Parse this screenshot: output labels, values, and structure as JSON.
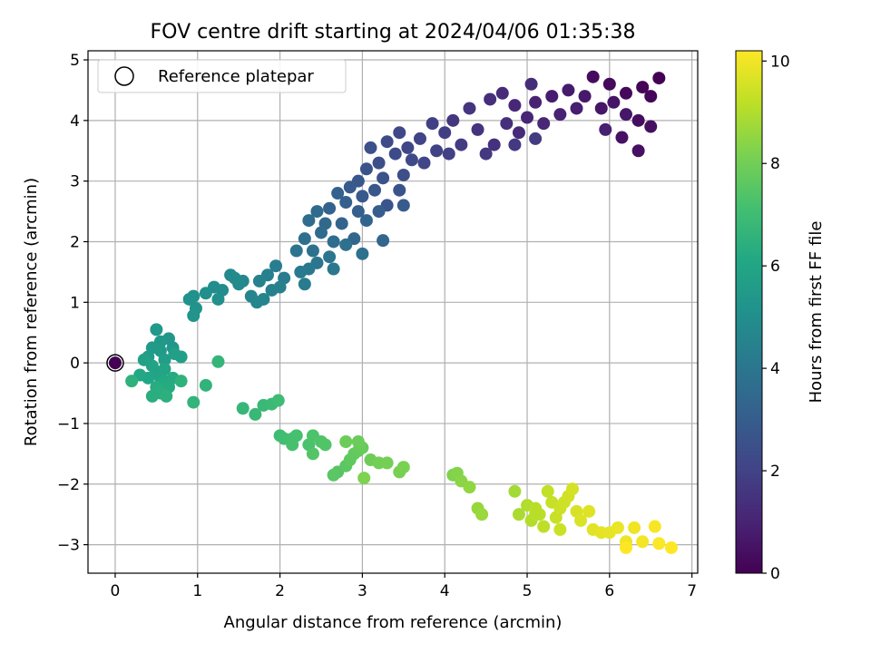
{
  "chart_data": {
    "type": "scatter",
    "title": "FOV centre drift starting at 2024/04/06 01:35:38",
    "xlabel": "Angular distance from reference (arcmin)",
    "ylabel": "Rotation from reference (arcmin)",
    "xlim": [
      -0.33,
      7.07
    ],
    "ylim": [
      -3.47,
      5.15
    ],
    "xticks": [
      0,
      1,
      2,
      3,
      4,
      5,
      6,
      7
    ],
    "yticks": [
      -3,
      -2,
      -1,
      0,
      1,
      2,
      3,
      4,
      5
    ],
    "grid": true,
    "legend": {
      "placement": "top-left",
      "entries": [
        "Reference platepar"
      ]
    },
    "reference_point": {
      "x": 0,
      "y": 0,
      "hours": 0
    },
    "colorbar": {
      "label": "Hours from first FF file",
      "colormap": "viridis",
      "range": [
        0,
        10.2
      ],
      "ticks": [
        0,
        2,
        4,
        6,
        8,
        10
      ]
    },
    "points": [
      [
        6.6,
        4.7,
        0.0
      ],
      [
        6.4,
        4.55,
        0.1
      ],
      [
        6.5,
        4.4,
        0.15
      ],
      [
        6.2,
        4.45,
        0.2
      ],
      [
        6.0,
        4.6,
        0.25
      ],
      [
        5.8,
        4.72,
        0.3
      ],
      [
        6.35,
        4.0,
        0.35
      ],
      [
        6.5,
        3.9,
        0.4
      ],
      [
        6.35,
        3.5,
        0.45
      ],
      [
        6.15,
        3.72,
        0.5
      ],
      [
        6.05,
        4.3,
        0.55
      ],
      [
        5.9,
        4.2,
        0.6
      ],
      [
        6.2,
        4.1,
        0.65
      ],
      [
        5.7,
        4.4,
        0.7
      ],
      [
        5.5,
        4.5,
        0.75
      ],
      [
        5.3,
        4.4,
        0.8
      ],
      [
        5.6,
        4.2,
        0.85
      ],
      [
        5.95,
        3.85,
        0.9
      ],
      [
        5.4,
        4.1,
        0.95
      ],
      [
        5.1,
        4.3,
        1.0
      ],
      [
        5.0,
        4.05,
        1.05
      ],
      [
        5.2,
        3.95,
        1.1
      ],
      [
        4.85,
        4.25,
        1.15
      ],
      [
        4.7,
        4.45,
        1.2
      ],
      [
        4.9,
        3.8,
        1.25
      ],
      [
        5.05,
        4.6,
        1.3
      ],
      [
        4.55,
        4.35,
        1.35
      ],
      [
        4.75,
        3.95,
        1.4
      ],
      [
        4.6,
        3.6,
        1.45
      ],
      [
        4.4,
        3.85,
        1.5
      ],
      [
        4.3,
        4.2,
        1.55
      ],
      [
        4.1,
        4.0,
        1.6
      ],
      [
        4.5,
        3.45,
        1.65
      ],
      [
        4.85,
        3.6,
        1.7
      ],
      [
        5.1,
        3.7,
        1.75
      ],
      [
        4.2,
        3.6,
        1.8
      ],
      [
        4.0,
        3.8,
        1.85
      ],
      [
        3.85,
        3.95,
        1.9
      ],
      [
        4.05,
        3.45,
        1.95
      ],
      [
        3.9,
        3.5,
        2.0
      ],
      [
        3.7,
        3.7,
        2.05
      ],
      [
        3.75,
        3.3,
        2.1
      ],
      [
        3.55,
        3.55,
        2.15
      ],
      [
        3.45,
        3.8,
        2.2
      ],
      [
        3.6,
        3.35,
        2.25
      ],
      [
        3.4,
        3.45,
        2.3
      ],
      [
        3.3,
        3.65,
        2.35
      ],
      [
        3.5,
        3.1,
        2.4
      ],
      [
        3.2,
        3.3,
        2.45
      ],
      [
        3.1,
        3.55,
        2.5
      ],
      [
        3.25,
        3.05,
        2.55
      ],
      [
        3.05,
        3.2,
        2.6
      ],
      [
        3.45,
        2.85,
        2.65
      ],
      [
        3.3,
        2.6,
        2.7
      ],
      [
        3.15,
        2.85,
        2.75
      ],
      [
        2.95,
        3.0,
        2.8
      ],
      [
        3.0,
        2.75,
        2.85
      ],
      [
        2.85,
        2.9,
        2.9
      ],
      [
        3.5,
        2.6,
        2.95
      ],
      [
        3.2,
        2.5,
        3.0
      ],
      [
        2.95,
        2.5,
        3.05
      ],
      [
        2.8,
        2.65,
        3.1
      ],
      [
        2.7,
        2.8,
        3.15
      ],
      [
        2.6,
        2.55,
        3.2
      ],
      [
        2.75,
        2.3,
        3.25
      ],
      [
        3.05,
        2.35,
        3.3
      ],
      [
        3.25,
        2.02,
        3.35
      ],
      [
        2.9,
        2.05,
        3.4
      ],
      [
        2.55,
        2.3,
        3.45
      ],
      [
        2.45,
        2.5,
        3.5
      ],
      [
        2.5,
        2.15,
        3.55
      ],
      [
        2.35,
        2.35,
        3.6
      ],
      [
        2.65,
        2.0,
        3.65
      ],
      [
        2.3,
        2.05,
        3.7
      ],
      [
        2.8,
        1.95,
        3.75
      ],
      [
        3.0,
        1.8,
        3.8
      ],
      [
        2.4,
        1.85,
        3.85
      ],
      [
        2.2,
        1.85,
        3.9
      ],
      [
        2.45,
        1.65,
        3.95
      ],
      [
        2.6,
        1.75,
        4.0
      ],
      [
        2.65,
        1.55,
        4.05
      ],
      [
        2.35,
        1.55,
        4.1
      ],
      [
        2.25,
        1.5,
        4.15
      ],
      [
        2.3,
        1.3,
        4.2
      ],
      [
        2.05,
        1.4,
        4.25
      ],
      [
        1.95,
        1.6,
        4.3
      ],
      [
        2.0,
        1.25,
        4.35
      ],
      [
        1.85,
        1.45,
        4.4
      ],
      [
        1.9,
        1.2,
        4.45
      ],
      [
        1.75,
        1.35,
        4.5
      ],
      [
        1.65,
        1.1,
        4.55
      ],
      [
        1.8,
        1.05,
        4.6
      ],
      [
        1.72,
        1.0,
        4.65
      ],
      [
        1.55,
        1.35,
        4.7
      ],
      [
        1.4,
        1.45,
        4.75
      ],
      [
        1.5,
        1.3,
        4.8
      ],
      [
        1.45,
        1.4,
        4.85
      ],
      [
        1.3,
        1.2,
        4.9
      ],
      [
        1.2,
        1.25,
        4.95
      ],
      [
        1.25,
        1.05,
        5.0
      ],
      [
        1.1,
        1.15,
        5.05
      ],
      [
        0.95,
        1.1,
        5.1
      ],
      [
        0.9,
        1.05,
        5.15
      ],
      [
        0.98,
        0.9,
        5.2
      ],
      [
        0.95,
        0.78,
        5.25
      ],
      [
        0.7,
        0.25,
        5.3
      ],
      [
        0.65,
        0.4,
        5.35
      ],
      [
        0.5,
        0.55,
        5.4
      ],
      [
        0.55,
        0.35,
        5.45
      ],
      [
        0.45,
        0.25,
        5.5
      ],
      [
        0.55,
        0.2,
        5.55
      ],
      [
        0.4,
        0.1,
        5.6
      ],
      [
        0.6,
        0.05,
        5.65
      ],
      [
        0.72,
        0.15,
        5.7
      ],
      [
        0.8,
        0.1,
        5.75
      ],
      [
        0.35,
        0.05,
        5.8
      ],
      [
        0.45,
        -0.05,
        5.85
      ],
      [
        0.5,
        -0.15,
        5.9
      ],
      [
        0.6,
        -0.1,
        5.95
      ],
      [
        0.55,
        -0.25,
        6.0
      ],
      [
        0.4,
        -0.25,
        6.05
      ],
      [
        0.3,
        -0.2,
        6.1
      ],
      [
        0.6,
        -0.3,
        6.15
      ],
      [
        0.7,
        -0.25,
        6.2
      ],
      [
        0.65,
        -0.4,
        6.25
      ],
      [
        0.5,
        -0.4,
        6.3
      ],
      [
        0.45,
        -0.55,
        6.35
      ],
      [
        0.55,
        -0.5,
        6.4
      ],
      [
        0.62,
        -0.55,
        6.45
      ],
      [
        0.2,
        -0.3,
        6.5
      ],
      [
        0.8,
        -0.3,
        6.55
      ],
      [
        1.1,
        -0.37,
        6.6
      ],
      [
        0.95,
        -0.65,
        6.65
      ],
      [
        1.25,
        0.02,
        6.7
      ],
      [
        1.55,
        -0.75,
        6.75
      ],
      [
        1.7,
        -0.85,
        6.8
      ],
      [
        1.8,
        -0.7,
        6.85
      ],
      [
        1.9,
        -0.68,
        6.9
      ],
      [
        1.98,
        -0.62,
        6.95
      ],
      [
        2.0,
        -1.2,
        7.0
      ],
      [
        2.05,
        -1.25,
        7.05
      ],
      [
        2.15,
        -1.25,
        7.1
      ],
      [
        2.2,
        -1.2,
        7.15
      ],
      [
        2.15,
        -1.35,
        7.2
      ],
      [
        2.35,
        -1.35,
        7.25
      ],
      [
        2.4,
        -1.2,
        7.3
      ],
      [
        2.5,
        -1.3,
        7.35
      ],
      [
        2.55,
        -1.35,
        7.4
      ],
      [
        2.4,
        -1.5,
        7.45
      ],
      [
        2.7,
        -1.8,
        7.5
      ],
      [
        2.65,
        -1.85,
        7.55
      ],
      [
        2.8,
        -1.7,
        7.6
      ],
      [
        2.85,
        -1.6,
        7.65
      ],
      [
        2.9,
        -1.5,
        7.7
      ],
      [
        2.95,
        -1.45,
        7.75
      ],
      [
        3.0,
        -1.4,
        7.8
      ],
      [
        2.95,
        -1.3,
        7.85
      ],
      [
        2.8,
        -1.3,
        7.9
      ],
      [
        3.1,
        -1.6,
        7.95
      ],
      [
        3.2,
        -1.65,
        8.0
      ],
      [
        3.3,
        -1.65,
        8.05
      ],
      [
        3.45,
        -1.8,
        8.1
      ],
      [
        3.5,
        -1.72,
        8.15
      ],
      [
        3.02,
        -1.9,
        8.2
      ],
      [
        4.1,
        -1.85,
        8.25
      ],
      [
        4.15,
        -1.82,
        8.3
      ],
      [
        4.2,
        -1.95,
        8.4
      ],
      [
        4.3,
        -2.05,
        8.5
      ],
      [
        4.4,
        -2.4,
        8.6
      ],
      [
        4.45,
        -2.5,
        8.65
      ],
      [
        4.85,
        -2.12,
        8.8
      ],
      [
        4.9,
        -2.5,
        8.9
      ],
      [
        5.0,
        -2.35,
        9.0
      ],
      [
        5.05,
        -2.6,
        9.05
      ],
      [
        5.1,
        -2.4,
        9.1
      ],
      [
        5.15,
        -2.5,
        9.15
      ],
      [
        5.2,
        -2.7,
        9.2
      ],
      [
        5.25,
        -2.12,
        9.25
      ],
      [
        5.3,
        -2.3,
        9.3
      ],
      [
        5.35,
        -2.55,
        9.35
      ],
      [
        5.4,
        -2.4,
        9.4
      ],
      [
        5.45,
        -2.3,
        9.45
      ],
      [
        5.5,
        -2.2,
        9.5
      ],
      [
        5.55,
        -2.08,
        9.55
      ],
      [
        5.6,
        -2.45,
        9.6
      ],
      [
        5.65,
        -2.6,
        9.65
      ],
      [
        5.75,
        -2.45,
        9.7
      ],
      [
        5.8,
        -2.75,
        9.75
      ],
      [
        5.9,
        -2.8,
        9.8
      ],
      [
        6.0,
        -2.8,
        9.85
      ],
      [
        6.1,
        -2.72,
        9.9
      ],
      [
        6.2,
        -2.95,
        9.95
      ],
      [
        6.3,
        -2.72,
        10.0
      ],
      [
        6.4,
        -2.95,
        10.05
      ],
      [
        6.55,
        -2.7,
        10.1
      ],
      [
        6.6,
        -2.98,
        10.15
      ],
      [
        6.75,
        -3.05,
        10.2
      ],
      [
        6.2,
        -3.05,
        10.2
      ],
      [
        5.4,
        -2.75,
        9.4
      ],
      [
        5.1,
        -2.5,
        9.1
      ]
    ]
  }
}
